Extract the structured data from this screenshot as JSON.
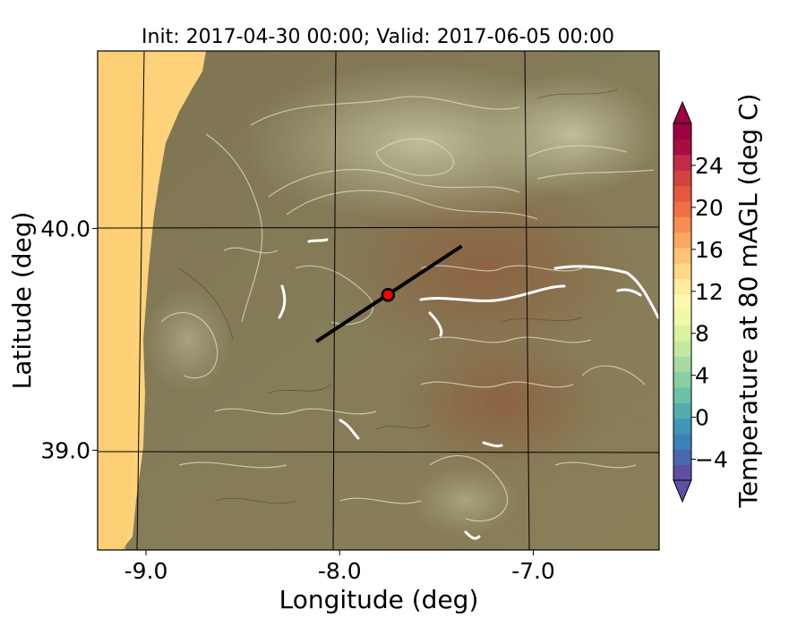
{
  "title": "Init: 2017-04-30 00:00; Valid: 2017-06-05 00:00",
  "map": {
    "xlabel": "Longitude (deg)",
    "ylabel": "Latitude (deg)",
    "x_ticks": [
      {
        "value": -9.0,
        "label": "-9.0"
      },
      {
        "value": -8.0,
        "label": "-8.0"
      },
      {
        "value": -7.0,
        "label": "-7.0"
      }
    ],
    "y_ticks": [
      {
        "value": 40.0,
        "label": "40.0"
      },
      {
        "value": 39.0,
        "label": "39.0"
      }
    ],
    "extent": {
      "lon": [
        -9.25,
        -6.35
      ],
      "lat": [
        38.55,
        40.8
      ]
    },
    "transect": {
      "start": {
        "lon": -8.12,
        "lat": 39.49
      },
      "end": {
        "lon": -7.37,
        "lat": 39.92
      }
    },
    "marker": {
      "lon": -7.75,
      "lat": 39.7,
      "color": "#ff0000"
    },
    "ocean_color": "#fdd27a",
    "terrain_color": "#877a55"
  },
  "colorbar": {
    "label": "Temperature at 80 mAGL (deg C)",
    "range": [
      -6,
      28
    ],
    "ticks": [
      {
        "value": -4,
        "label": "−4"
      },
      {
        "value": 0,
        "label": "0"
      },
      {
        "value": 4,
        "label": "4"
      },
      {
        "value": 8,
        "label": "8"
      },
      {
        "value": 12,
        "label": "12"
      },
      {
        "value": 16,
        "label": "16"
      },
      {
        "value": 20,
        "label": "20"
      },
      {
        "value": 24,
        "label": "24"
      }
    ],
    "colors": [
      "#5e4fa2",
      "#4b68ae",
      "#3a82b9",
      "#3f96b7",
      "#55acac",
      "#6bc3a4",
      "#89cfa4",
      "#a7dba3",
      "#c4e8a0",
      "#dbf19e",
      "#f0f8a9",
      "#fbf8b0",
      "#feec9f",
      "#fed988",
      "#fdc273",
      "#fca95f",
      "#f88d52",
      "#f16f46",
      "#e4583d",
      "#d4423e",
      "#c22a4a",
      "#a80d42",
      "#9e0142"
    ]
  }
}
